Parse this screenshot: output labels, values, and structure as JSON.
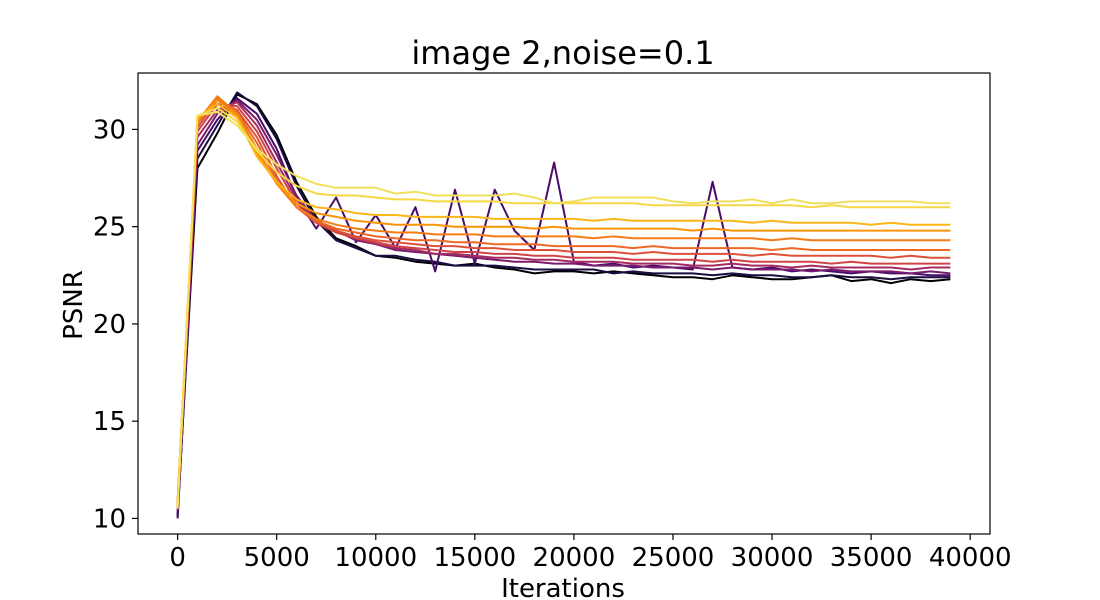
{
  "chart_data": {
    "type": "line",
    "title": "image 2,noise=0.1",
    "xlabel": "Iterations",
    "ylabel": "PSNR",
    "xlim": [
      -2000,
      41000
    ],
    "ylim": [
      9.2,
      32.9
    ],
    "xticks": [
      0,
      5000,
      10000,
      15000,
      20000,
      25000,
      30000,
      35000,
      40000
    ],
    "xtick_labels": [
      "0",
      "5000",
      "10000",
      "15000",
      "20000",
      "25000",
      "30000",
      "35000",
      "40000"
    ],
    "yticks": [
      10,
      15,
      20,
      25,
      30
    ],
    "ytick_labels": [
      "10",
      "15",
      "20",
      "25",
      "30"
    ],
    "grid": false,
    "legend": "none",
    "colormap": "inferno",
    "x": [
      0,
      1000,
      2000,
      3000,
      4000,
      5000,
      6000,
      7000,
      8000,
      9000,
      10000,
      11000,
      12000,
      13000,
      14000,
      15000,
      16000,
      17000,
      18000,
      19000,
      20000,
      21000,
      22000,
      23000,
      24000,
      25000,
      26000,
      27000,
      28000,
      29000,
      30000,
      31000,
      32000,
      33000,
      34000,
      35000,
      36000,
      37000,
      38000,
      39000
    ],
    "series": [
      {
        "color": "#000004",
        "values": [
          10.2,
          28.0,
          29.8,
          31.8,
          31.3,
          29.7,
          27.3,
          25.5,
          24.4,
          24.0,
          23.5,
          23.4,
          23.2,
          23.1,
          23.0,
          23.1,
          22.9,
          22.8,
          22.6,
          22.7,
          22.7,
          22.6,
          22.7,
          22.6,
          22.5,
          22.4,
          22.4,
          22.3,
          22.5,
          22.4,
          22.3,
          22.3,
          22.4,
          22.5,
          22.2,
          22.3,
          22.1,
          22.3,
          22.2,
          22.3
        ]
      },
      {
        "color": "#1b0c41",
        "values": [
          10.1,
          28.5,
          30.2,
          31.9,
          31.2,
          29.5,
          27.1,
          25.3,
          24.3,
          23.9,
          23.5,
          23.5,
          23.3,
          23.2,
          23.0,
          23.0,
          23.0,
          22.9,
          22.8,
          22.8,
          22.8,
          22.8,
          22.6,
          22.7,
          22.6,
          22.6,
          22.6,
          22.5,
          22.6,
          22.5,
          22.5,
          22.4,
          22.4,
          22.5,
          22.4,
          22.4,
          22.3,
          22.4,
          22.4,
          22.4
        ]
      },
      {
        "color": "#4a0c6b",
        "values": [
          10.0,
          28.9,
          30.5,
          31.6,
          30.8,
          29.0,
          26.5,
          24.9,
          26.5,
          24.2,
          25.6,
          23.9,
          26.0,
          22.7,
          26.9,
          23.1,
          26.9,
          24.8,
          23.8,
          28.3,
          23.2,
          23.0,
          23.1,
          22.9,
          23.0,
          22.9,
          22.8,
          27.3,
          22.9,
          22.8,
          22.9,
          22.7,
          22.8,
          22.7,
          22.6,
          22.7,
          22.6,
          22.6,
          22.5,
          22.5
        ]
      },
      {
        "color": "#781c6d",
        "values": [
          10.4,
          29.2,
          30.8,
          31.5,
          30.5,
          28.7,
          26.6,
          25.3,
          24.8,
          24.3,
          24.1,
          23.8,
          23.7,
          23.6,
          23.5,
          23.4,
          23.3,
          23.2,
          23.2,
          23.1,
          23.1,
          23.0,
          23.0,
          23.0,
          22.9,
          22.9,
          22.9,
          22.8,
          22.9,
          22.8,
          22.8,
          22.8,
          22.7,
          22.8,
          22.7,
          22.7,
          22.7,
          22.6,
          22.7,
          22.6
        ]
      },
      {
        "color": "#a52c60",
        "values": [
          10.5,
          29.6,
          31.0,
          31.4,
          30.2,
          28.3,
          26.4,
          25.3,
          24.8,
          24.4,
          24.1,
          23.9,
          23.8,
          23.6,
          23.6,
          23.5,
          23.4,
          23.4,
          23.3,
          23.3,
          23.2,
          23.2,
          23.2,
          23.1,
          23.1,
          23.1,
          23.0,
          23.0,
          23.1,
          23.0,
          23.0,
          22.9,
          23.0,
          22.9,
          22.9,
          22.9,
          22.9,
          22.8,
          22.9,
          22.9
        ]
      },
      {
        "color": "#cf4446",
        "values": [
          10.6,
          29.9,
          31.3,
          31.2,
          29.9,
          28.0,
          26.2,
          25.2,
          24.7,
          24.4,
          24.2,
          24.0,
          23.9,
          23.8,
          23.7,
          23.7,
          23.6,
          23.6,
          23.5,
          23.5,
          23.4,
          23.4,
          23.4,
          23.3,
          23.3,
          23.3,
          23.3,
          23.2,
          23.3,
          23.2,
          23.2,
          23.2,
          23.2,
          23.1,
          23.2,
          23.1,
          23.1,
          23.1,
          23.1,
          23.1
        ]
      },
      {
        "color": "#dd513a",
        "values": [
          10.7,
          30.1,
          31.5,
          31.0,
          29.6,
          27.6,
          26.0,
          25.2,
          24.8,
          24.5,
          24.3,
          24.2,
          24.1,
          24.0,
          24.0,
          23.9,
          23.9,
          23.8,
          23.8,
          23.8,
          23.7,
          23.7,
          23.7,
          23.6,
          23.7,
          23.6,
          23.6,
          23.6,
          23.6,
          23.5,
          23.6,
          23.5,
          23.5,
          23.5,
          23.5,
          23.5,
          23.4,
          23.5,
          23.4,
          23.4
        ]
      },
      {
        "color": "#ed6925",
        "values": [
          10.8,
          30.3,
          31.6,
          30.9,
          29.3,
          27.4,
          26.0,
          25.3,
          24.9,
          24.7,
          24.5,
          24.4,
          24.3,
          24.3,
          24.2,
          24.2,
          24.1,
          24.1,
          24.1,
          24.0,
          24.0,
          24.0,
          24.0,
          23.9,
          24.0,
          23.9,
          23.9,
          23.9,
          23.9,
          23.9,
          23.8,
          23.9,
          23.8,
          23.8,
          23.8,
          23.8,
          23.8,
          23.8,
          23.8,
          23.8
        ]
      },
      {
        "color": "#f57d15",
        "values": [
          10.8,
          30.4,
          31.7,
          30.8,
          29.0,
          27.2,
          26.0,
          25.4,
          25.1,
          24.9,
          24.8,
          24.7,
          24.7,
          24.6,
          24.6,
          24.6,
          24.5,
          24.5,
          24.5,
          24.5,
          24.5,
          24.4,
          24.5,
          24.4,
          24.4,
          24.4,
          24.4,
          24.4,
          24.4,
          24.4,
          24.3,
          24.4,
          24.3,
          24.3,
          24.3,
          24.3,
          24.3,
          24.3,
          24.3,
          24.3
        ]
      },
      {
        "color": "#fa9407",
        "values": [
          10.9,
          30.5,
          31.5,
          30.7,
          28.8,
          27.2,
          26.2,
          25.7,
          25.5,
          25.3,
          25.2,
          25.1,
          25.1,
          25.1,
          25.0,
          25.0,
          25.0,
          25.0,
          24.9,
          25.0,
          24.9,
          24.9,
          24.9,
          24.9,
          24.9,
          24.9,
          24.8,
          24.9,
          24.8,
          24.8,
          24.8,
          24.8,
          24.8,
          24.8,
          24.8,
          24.8,
          24.8,
          24.8,
          24.8,
          24.8
        ]
      },
      {
        "color": "#fbb61a",
        "values": [
          10.9,
          30.6,
          31.3,
          30.6,
          28.6,
          27.3,
          26.4,
          26.0,
          25.9,
          25.7,
          25.6,
          25.6,
          25.5,
          25.5,
          25.5,
          25.5,
          25.4,
          25.4,
          25.4,
          25.4,
          25.4,
          25.3,
          25.4,
          25.3,
          25.3,
          25.3,
          25.3,
          25.3,
          25.3,
          25.2,
          25.3,
          25.2,
          25.2,
          25.2,
          25.2,
          25.1,
          25.2,
          25.1,
          25.1,
          25.1
        ]
      },
      {
        "color": "#f6d746",
        "values": [
          10.6,
          30.7,
          31.1,
          30.4,
          28.9,
          27.8,
          27.1,
          26.7,
          26.6,
          26.6,
          26.5,
          26.4,
          26.4,
          26.3,
          26.3,
          26.3,
          26.3,
          26.2,
          26.2,
          26.2,
          26.2,
          26.2,
          26.2,
          26.2,
          26.1,
          26.1,
          26.1,
          26.1,
          26.1,
          26.1,
          26.1,
          26.1,
          26.0,
          26.1,
          26.0,
          26.0,
          26.0,
          26.0,
          26.0,
          26.0
        ]
      },
      {
        "color": "#f0e05c",
        "values": [
          10.5,
          30.7,
          30.9,
          30.2,
          29.0,
          28.2,
          27.6,
          27.2,
          27.0,
          27.0,
          27.0,
          26.7,
          26.8,
          26.6,
          26.6,
          26.6,
          26.6,
          26.7,
          26.5,
          26.2,
          26.3,
          26.5,
          26.5,
          26.5,
          26.5,
          26.3,
          26.2,
          26.3,
          26.3,
          26.4,
          26.2,
          26.4,
          26.2,
          26.2,
          26.3,
          26.3,
          26.3,
          26.3,
          26.2,
          26.2
        ]
      }
    ]
  }
}
